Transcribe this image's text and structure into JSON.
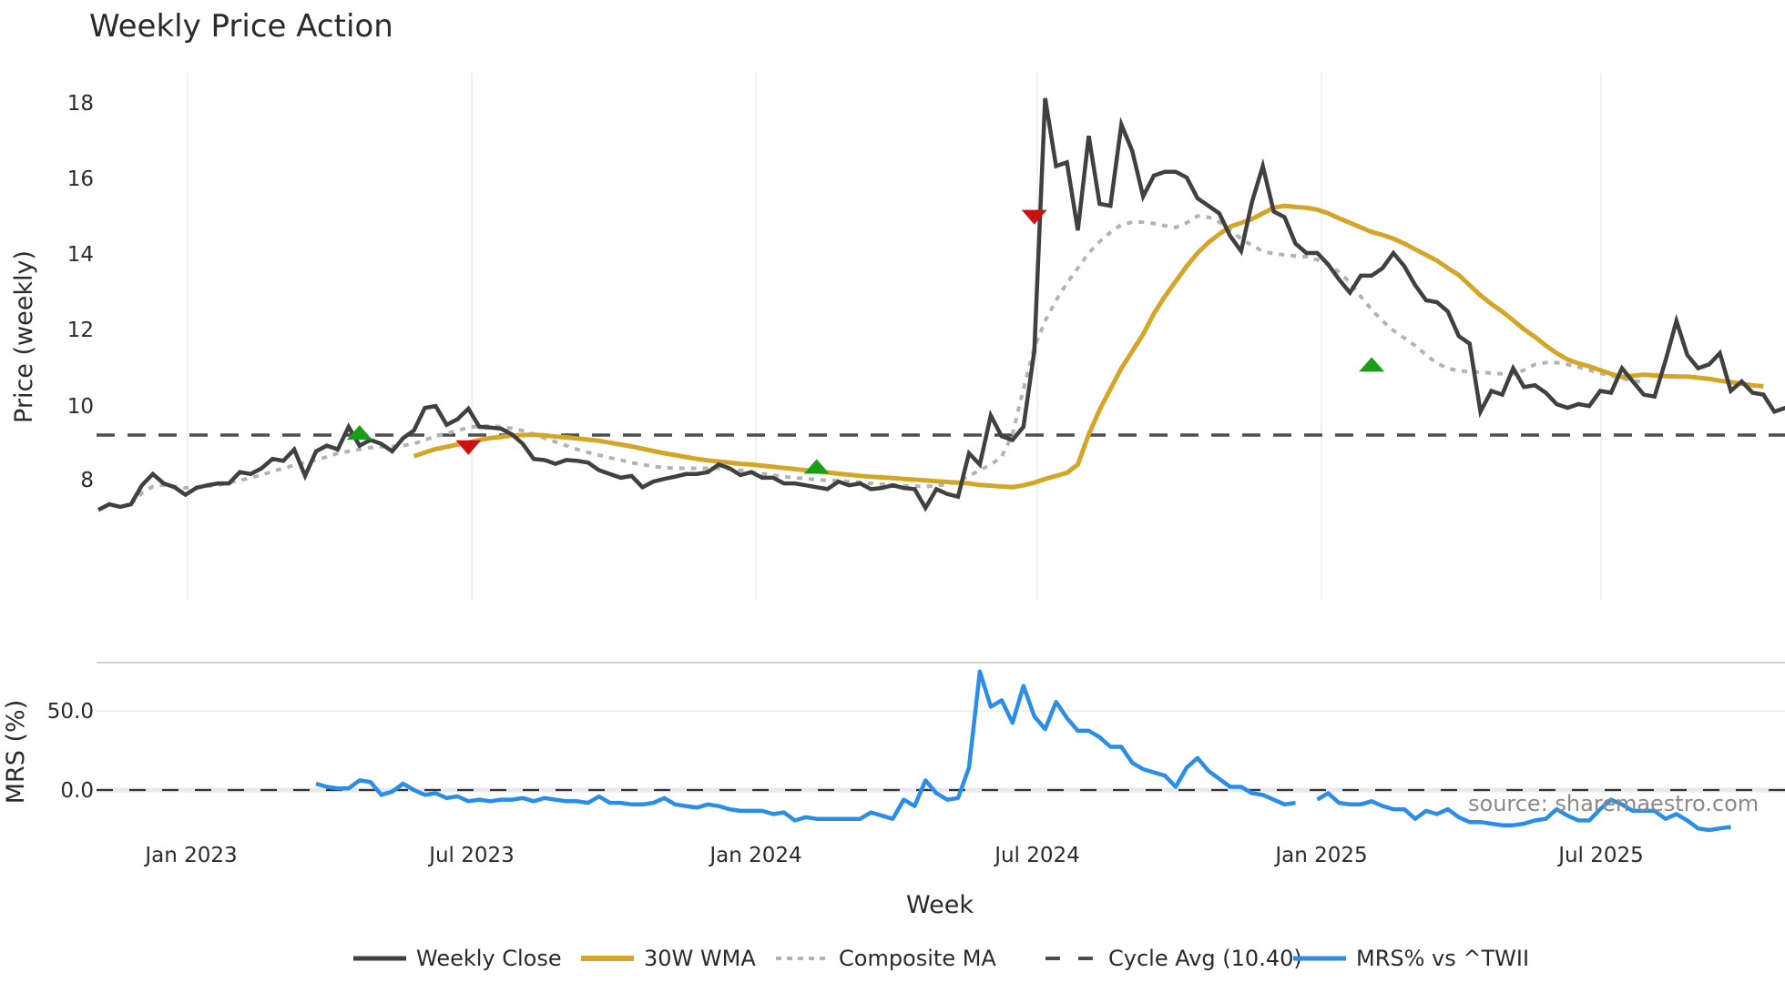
{
  "chart_data": [
    {
      "type": "line",
      "title": "Weekly Price Action",
      "xlabel": "Week",
      "ylabel": "Price (weekly)",
      "ylim": [
        6.9,
        18.7
      ],
      "yticks": [
        "8",
        "10",
        "12",
        "14",
        "16",
        "18"
      ],
      "xticks": [
        "Jan 2023",
        "Jul 2023",
        "Jan 2024",
        "Jul 2024",
        "Jan 2025",
        "Jul 2025"
      ],
      "grid": true,
      "x_start": "2022-11-07",
      "x_step": "1 week",
      "series": [
        {
          "name": "Weekly Close",
          "color": "#404040",
          "style": "solid",
          "values": [
            7.2,
            7.35,
            7.28,
            7.35,
            7.85,
            8.15,
            7.9,
            7.8,
            7.6,
            7.78,
            7.85,
            7.9,
            7.9,
            8.2,
            8.15,
            8.3,
            8.55,
            8.5,
            8.8,
            8.1,
            8.75,
            8.9,
            8.8,
            9.4,
            8.9,
            9.05,
            8.95,
            8.75,
            9.1,
            9.3,
            9.9,
            9.95,
            9.45,
            9.6,
            9.88,
            9.4,
            9.38,
            9.35,
            9.2,
            8.95,
            8.55,
            8.52,
            8.42,
            8.52,
            8.5,
            8.45,
            8.25,
            8.15,
            8.05,
            8.1,
            7.8,
            7.95,
            8.02,
            8.08,
            8.15,
            8.15,
            8.2,
            8.4,
            8.3,
            8.12,
            8.2,
            8.05,
            8.05,
            7.9,
            7.9,
            7.85,
            7.8,
            7.75,
            7.95,
            7.85,
            7.9,
            7.75,
            7.78,
            7.85,
            7.78,
            7.75,
            7.25,
            7.75,
            7.62,
            7.55,
            8.7,
            8.4,
            9.7,
            9.15,
            9.05,
            9.4,
            11.4,
            18.1,
            16.3,
            16.4,
            14.6,
            17.1,
            15.3,
            15.25,
            17.4,
            16.7,
            15.5,
            16.05,
            16.15,
            16.15,
            16.0,
            15.45,
            15.25,
            15.05,
            14.45,
            14.05,
            15.35,
            16.3,
            15.1,
            14.95,
            14.25,
            14.0,
            14.0,
            13.7,
            13.3,
            12.95,
            13.4,
            13.4,
            13.6,
            14.0,
            13.65,
            13.15,
            12.75,
            12.7,
            12.45,
            11.8,
            11.6,
            9.8,
            10.35,
            10.25,
            10.95,
            10.45,
            10.5,
            10.3,
            10.0,
            9.9,
            10.0,
            9.95,
            10.35,
            10.3,
            10.95,
            10.6,
            10.25,
            10.2,
            11.15,
            12.2,
            11.3,
            10.95,
            11.05,
            11.35,
            10.35,
            10.6,
            10.3,
            10.25,
            9.8,
            9.9,
            10.0
          ]
        },
        {
          "name": "30W WMA",
          "color": "#d4a526",
          "style": "solid",
          "start_index": 29,
          "values": [
            8.62,
            8.72,
            8.81,
            8.87,
            8.93,
            8.98,
            9.05,
            9.1,
            9.13,
            9.17,
            9.18,
            9.19,
            9.17,
            9.14,
            9.12,
            9.09,
            9.06,
            9.03,
            8.98,
            8.93,
            8.88,
            8.82,
            8.76,
            8.7,
            8.65,
            8.6,
            8.55,
            8.51,
            8.48,
            8.45,
            8.42,
            8.4,
            8.37,
            8.34,
            8.31,
            8.28,
            8.25,
            8.22,
            8.19,
            8.16,
            8.13,
            8.1,
            8.08,
            8.06,
            8.04,
            8.02,
            8.0,
            7.98,
            7.96,
            7.94,
            7.92,
            7.9,
            7.86,
            7.84,
            7.82,
            7.8,
            7.85,
            7.92,
            8.02,
            8.1,
            8.18,
            8.4,
            9.2,
            9.85,
            10.4,
            10.95,
            11.4,
            11.85,
            12.4,
            12.85,
            13.25,
            13.65,
            14.0,
            14.28,
            14.5,
            14.7,
            14.8,
            14.9,
            15.05,
            15.2,
            15.25,
            15.22,
            15.2,
            15.15,
            15.05,
            14.92,
            14.8,
            14.68,
            14.56,
            14.48,
            14.38,
            14.25,
            14.1,
            13.95,
            13.8,
            13.6,
            13.42,
            13.15,
            12.88,
            12.65,
            12.45,
            12.22,
            11.98,
            11.78,
            11.55,
            11.35,
            11.18,
            11.08,
            11.0,
            10.9,
            10.8,
            10.72,
            10.75,
            10.78,
            10.76,
            10.74,
            10.73,
            10.73,
            10.7,
            10.67,
            10.62,
            10.58,
            10.54,
            10.5,
            10.47
          ]
        },
        {
          "name": "Composite MA",
          "color": "#b3b3b3",
          "style": "dotted",
          "start_index": 3,
          "values": [
            7.35,
            7.65,
            7.82,
            7.86,
            7.82,
            7.78,
            7.8,
            7.83,
            7.85,
            7.92,
            7.98,
            8.05,
            8.12,
            8.22,
            8.3,
            8.38,
            8.45,
            8.52,
            8.6,
            8.7,
            8.75,
            8.8,
            8.85,
            8.87,
            8.88,
            8.9,
            8.95,
            9.05,
            9.15,
            9.22,
            9.3,
            9.38,
            9.42,
            9.42,
            9.4,
            9.36,
            9.3,
            9.2,
            9.1,
            9.0,
            8.9,
            8.8,
            8.72,
            8.65,
            8.58,
            8.52,
            8.45,
            8.4,
            8.35,
            8.32,
            8.3,
            8.3,
            8.3,
            8.3,
            8.3,
            8.28,
            8.25,
            8.2,
            8.16,
            8.12,
            8.08,
            8.05,
            8.03,
            8.0,
            7.98,
            7.97,
            7.95,
            7.93,
            7.9,
            7.88,
            7.86,
            7.84,
            7.83,
            7.82,
            7.84,
            7.88,
            7.95,
            8.1,
            8.25,
            8.4,
            8.6,
            9.2,
            10.4,
            11.5,
            12.2,
            12.75,
            13.2,
            13.6,
            14.0,
            14.3,
            14.55,
            14.75,
            14.82,
            14.82,
            14.78,
            14.72,
            14.68,
            14.8,
            14.98,
            14.95,
            14.82,
            14.6,
            14.38,
            14.2,
            14.05,
            13.98,
            13.95,
            13.92,
            13.9,
            13.82,
            13.7,
            13.5,
            13.22,
            12.85,
            12.5,
            12.2,
            11.95,
            11.75,
            11.55,
            11.3,
            11.08,
            10.95,
            10.88,
            10.86,
            10.84,
            10.82,
            10.8,
            10.8,
            10.9,
            11.05,
            11.1,
            11.1,
            11.05,
            10.98,
            10.9,
            10.82,
            10.75,
            10.68,
            10.62,
            10.58
          ]
        },
        {
          "name": "Cycle Avg (10.40)",
          "color": "#4d4d4d",
          "style": "dashed",
          "constant": 10.4
        }
      ],
      "signals": [
        {
          "type": "buy",
          "color": "#1a9e1a",
          "index": 24,
          "price": 9.25
        },
        {
          "type": "sell",
          "color": "#cc1111",
          "index": 34,
          "price": 8.85
        },
        {
          "type": "buy",
          "color": "#1a9e1a",
          "index": 66,
          "price": 8.35
        },
        {
          "type": "sell",
          "color": "#cc1111",
          "index": 86,
          "price": 14.95
        },
        {
          "type": "buy",
          "color": "#1a9e1a",
          "index": 117,
          "price": 11.05
        }
      ]
    },
    {
      "type": "line",
      "ylabel": "MRS (%)",
      "yticks": [
        "0.0",
        "50.0"
      ],
      "grid": true,
      "series": [
        {
          "name": "MRS% vs ^TWII",
          "color": "#2b8ee6",
          "style": "solid",
          "start_index": 20,
          "values": [
            4,
            2,
            1,
            1,
            6,
            5,
            -3,
            -1,
            4,
            0,
            -3,
            -2,
            -5,
            -4,
            -7,
            -6,
            -7,
            -6,
            -6,
            -5,
            -7,
            -5,
            -6,
            -7,
            -7,
            -8,
            -4,
            -8,
            -8,
            -9,
            -9,
            -8,
            -5,
            -9,
            -10,
            -11,
            -9,
            -10,
            -12,
            -13,
            -13,
            -13,
            -15,
            -14,
            -19,
            -17,
            -18,
            -18,
            -18,
            -18,
            -18,
            -14,
            -16,
            -18,
            -6,
            -10,
            6,
            -2,
            -6,
            -5,
            14,
            74,
            52,
            56,
            42,
            65,
            46,
            38,
            55,
            45,
            37,
            37,
            33,
            27,
            27,
            17,
            13,
            11,
            9,
            2,
            14,
            20,
            12,
            7,
            2,
            2,
            -2,
            -3,
            -6,
            -9,
            -8,
            null,
            -6,
            -2,
            -8,
            -9,
            -9,
            -7,
            -10,
            -12,
            -12,
            -18,
            -13,
            -15,
            -12,
            -17,
            -20,
            -20,
            -21,
            -22,
            -22,
            -21,
            -19,
            -18,
            -12,
            -16,
            -19,
            -19,
            -12,
            -6,
            -9,
            -13,
            -13,
            -13,
            -18,
            -15,
            -19,
            -24,
            -25,
            -24,
            -23
          ]
        }
      ]
    }
  ],
  "header": {
    "title": "Weekly Price Action"
  },
  "axes": {
    "price_ylabel": "Price (weekly)",
    "mrs_ylabel": "MRS (%)",
    "xlabel": "Week",
    "price_ticks": [
      "8",
      "10",
      "12",
      "14",
      "16",
      "18"
    ],
    "mrs_ticks": [
      "50.0",
      "0.0"
    ],
    "date_ticks": [
      "Jan 2023",
      "Jul 2023",
      "Jan 2024",
      "Jul 2024",
      "Jan 2025",
      "Jul 2025"
    ]
  },
  "legend": {
    "items": [
      {
        "label": "Weekly Close",
        "color": "#404040",
        "style": "solid"
      },
      {
        "label": "30W WMA",
        "color": "#d4a526",
        "style": "solid"
      },
      {
        "label": "Composite MA",
        "color": "#b3b3b3",
        "style": "dotted"
      },
      {
        "label": "Cycle Avg (10.40)",
        "color": "#4d4d4d",
        "style": "dashed"
      },
      {
        "label": "MRS% vs ^TWII",
        "color": "#2b8ee6",
        "style": "solid"
      }
    ]
  },
  "annotations": {
    "source": "source: sharemaestro.com"
  }
}
